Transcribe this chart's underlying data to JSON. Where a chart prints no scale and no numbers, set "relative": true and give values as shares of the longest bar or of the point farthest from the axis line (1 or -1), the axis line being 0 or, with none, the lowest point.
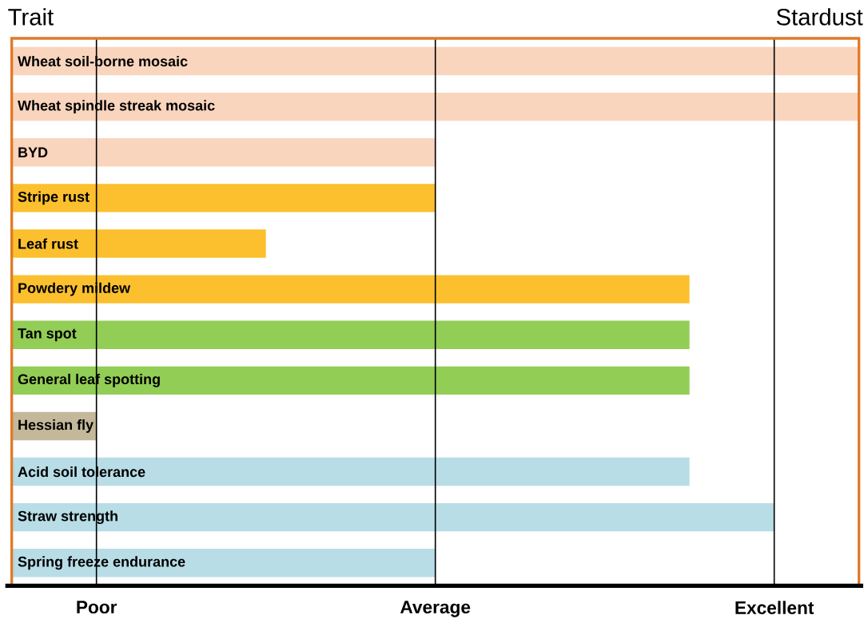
{
  "chart_data": {
    "type": "bar",
    "orientation": "horizontal",
    "relative": true,
    "title": "Stardust",
    "ylabel": "Trait",
    "categories": [
      "Wheat soil-borne mosaic",
      "Wheat spindle streak mosaic",
      "BYD",
      "Stripe rust",
      "Leaf rust",
      "Powdery mildew",
      "Tan spot",
      "General leaf spotting",
      "Hessian fly",
      "Acid soil tolerance",
      "Straw strength",
      "Spring freeze endurance"
    ],
    "values": [
      1,
      1,
      0.5,
      0.5,
      0.3,
      0.8,
      0.8,
      0.8,
      0.1,
      0.8,
      0.9,
      0.5
    ],
    "colors": [
      "#f9d5be",
      "#f9d5be",
      "#f9d5be",
      "#fcc02e",
      "#fcc02e",
      "#fcc02e",
      "#92cd55",
      "#92cd55",
      "#c3b89a",
      "#b8dde6",
      "#b8dde6",
      "#b8dde6"
    ],
    "annotations": [
      {
        "text": "Poor",
        "x": 0.1
      },
      {
        "text": "Average",
        "x": 0.5
      },
      {
        "text": "Excellent",
        "x": 0.9
      }
    ]
  }
}
